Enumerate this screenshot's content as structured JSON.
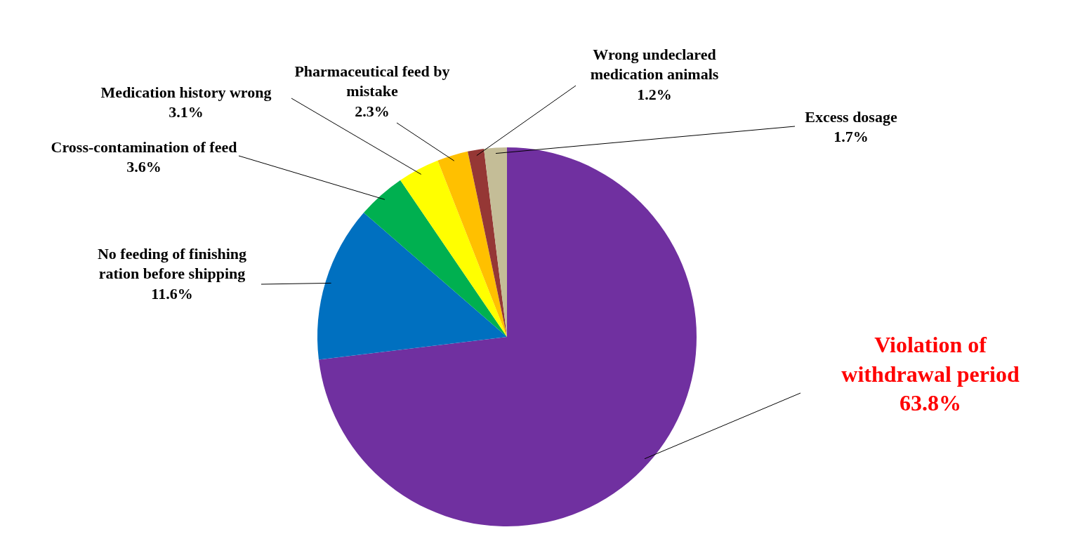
{
  "chart_data": {
    "type": "pie",
    "categories": [
      "Violation of withdrawal period",
      "No feeding of finishing ration before shipping",
      "Cross-contamination of feed",
      "Medication history wrong",
      "Pharmaceutical feed by mistake",
      "Wrong undeclared medication animals",
      "Excess dosage"
    ],
    "values": [
      63.8,
      11.6,
      3.6,
      3.1,
      2.3,
      1.2,
      1.7
    ],
    "value_labels": [
      "63.8%",
      "11.6%",
      "3.6%",
      "3.1%",
      "2.3%",
      "1.2%",
      "1.7%"
    ],
    "colors": [
      "#7030a0",
      "#0070c0",
      "#00b050",
      "#ffff00",
      "#ffc000",
      "#953735",
      "#c4bd97"
    ],
    "data_labels": true
  }
}
